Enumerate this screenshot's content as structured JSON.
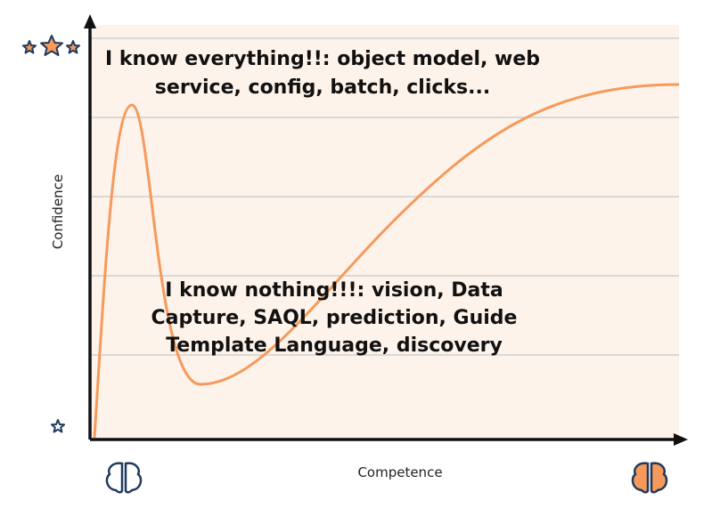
{
  "axes": {
    "y_label": "Confidence",
    "x_label": "Competence"
  },
  "annotations": [
    {
      "lines": [
        "I know everything!!: object model, web",
        "service, config, batch, clicks..."
      ]
    },
    {
      "lines": [
        "I know nothing!!!: vision, Data",
        "Capture, SAQL, prediction, Guide",
        "Template Language, discovery"
      ]
    }
  ]
}
